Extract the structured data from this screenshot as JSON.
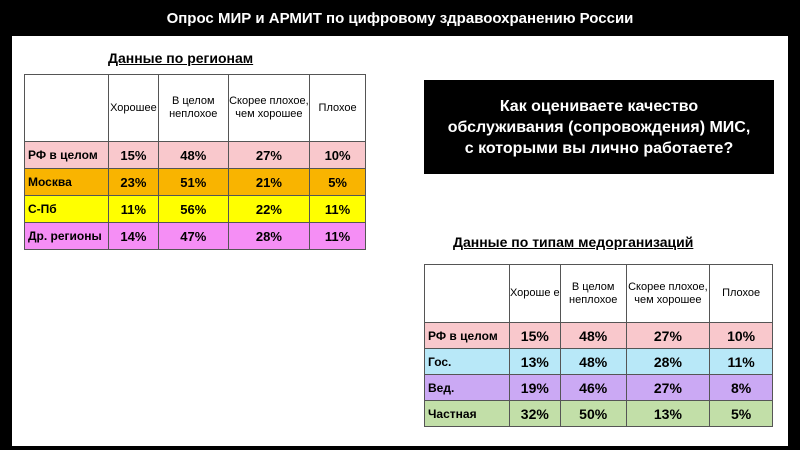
{
  "title": "Опрос МИР и АРМИТ по цифровому здравоохранению России",
  "question": "Как оцениваете качество обслуживания (сопровождения) МИС, с которыми вы лично работаете?",
  "colors": {
    "pink": "#f9c8cc",
    "orange": "#f9b400",
    "yellow": "#ffff00",
    "violet": "#f58ef5",
    "cyan": "#b8e8f8",
    "lavender": "#cba9f4",
    "green": "#c2dfa8"
  },
  "regions": {
    "caption": "Данные по регионам",
    "headers": [
      "Хорошее",
      "В целом неплохое",
      "Скорее плохое, чем хорошее",
      "Плохое"
    ],
    "rows": [
      {
        "label": "РФ в целом",
        "values": [
          "15%",
          "48%",
          "27%",
          "10%"
        ]
      },
      {
        "label": "Москва",
        "values": [
          "23%",
          "51%",
          "21%",
          "5%"
        ]
      },
      {
        "label": "С-Пб",
        "values": [
          "11%",
          "56%",
          "22%",
          "11%"
        ]
      },
      {
        "label": "Др. регионы",
        "values": [
          "14%",
          "47%",
          "28%",
          "11%"
        ]
      }
    ]
  },
  "types": {
    "caption": "Данные по типам медорганизаций",
    "headers": [
      "Хороше е",
      "В целом неплохое",
      "Скорее плохое, чем хорошее",
      "Плохое"
    ],
    "rows": [
      {
        "label": "РФ в целом",
        "values": [
          "15%",
          "48%",
          "27%",
          "10%"
        ]
      },
      {
        "label": "Гос.",
        "values": [
          "13%",
          "48%",
          "28%",
          "11%"
        ]
      },
      {
        "label": "Вед.",
        "values": [
          "19%",
          "46%",
          "27%",
          "8%"
        ]
      },
      {
        "label": "Частная",
        "values": [
          "32%",
          "50%",
          "13%",
          "5%"
        ]
      }
    ]
  }
}
